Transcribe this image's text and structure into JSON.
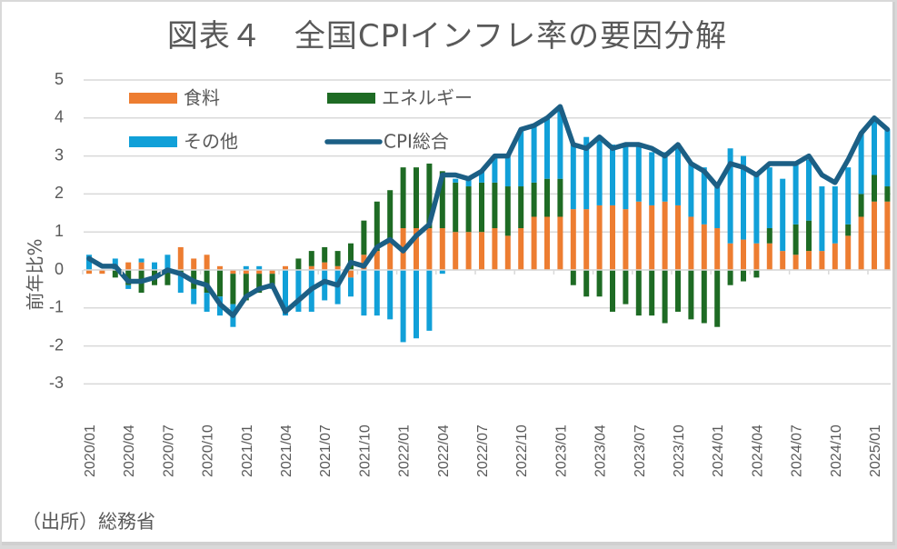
{
  "chart_data": {
    "type": "bar",
    "subtype": "stacked-bar-with-line",
    "title": "図表４　全国CPIインフレ率の要因分解",
    "xlabel": "",
    "ylabel": "前年比%",
    "ylim": [
      -3,
      5
    ],
    "yticks": [
      5,
      4,
      3,
      2,
      1,
      0,
      -1,
      -2,
      -3
    ],
    "grid": true,
    "legend_position": "top-left-inside",
    "source": "（出所）総務省",
    "x_tick_labels": [
      "2020/01",
      "2020/04",
      "2020/07",
      "2020/10",
      "2021/01",
      "2021/04",
      "2021/07",
      "2021/10",
      "2022/01",
      "2022/04",
      "2022/07",
      "2022/10",
      "2023/01",
      "2023/04",
      "2023/07",
      "2023/10",
      "2024/01",
      "2024/04",
      "2024/07",
      "2024/10",
      "2025/01"
    ],
    "categories": [
      "2020/01",
      "2020/02",
      "2020/03",
      "2020/04",
      "2020/05",
      "2020/06",
      "2020/07",
      "2020/08",
      "2020/09",
      "2020/10",
      "2020/11",
      "2020/12",
      "2021/01",
      "2021/02",
      "2021/03",
      "2021/04",
      "2021/05",
      "2021/06",
      "2021/07",
      "2021/08",
      "2021/09",
      "2021/10",
      "2021/11",
      "2021/12",
      "2022/01",
      "2022/02",
      "2022/03",
      "2022/04",
      "2022/05",
      "2022/06",
      "2022/07",
      "2022/08",
      "2022/09",
      "2022/10",
      "2022/11",
      "2022/12",
      "2023/01",
      "2023/02",
      "2023/03",
      "2023/04",
      "2023/05",
      "2023/06",
      "2023/07",
      "2023/08",
      "2023/09",
      "2023/10",
      "2023/11",
      "2023/12",
      "2024/01",
      "2024/02",
      "2024/03",
      "2024/04",
      "2024/05",
      "2024/06",
      "2024/07",
      "2024/08",
      "2024/09",
      "2024/10",
      "2024/11",
      "2024/12",
      "2025/01",
      "2025/02"
    ],
    "series": [
      {
        "name": "食料",
        "kind": "bar",
        "color": "#ED7D31",
        "values": [
          -0.1,
          -0.1,
          0.0,
          0.2,
          0.2,
          0.0,
          0.0,
          0.6,
          0.3,
          0.4,
          0.1,
          -0.1,
          -0.1,
          -0.1,
          -0.1,
          0.1,
          0.0,
          0.1,
          0.2,
          0.1,
          -0.2,
          0.4,
          0.5,
          0.8,
          1.1,
          1.1,
          1.1,
          1.1,
          1.0,
          1.0,
          1.0,
          1.1,
          0.9,
          1.1,
          1.4,
          1.4,
          1.4,
          1.6,
          1.6,
          1.7,
          1.7,
          1.6,
          1.8,
          1.7,
          1.8,
          1.7,
          1.4,
          1.2,
          1.1,
          0.7,
          0.8,
          0.7,
          0.7,
          0.5,
          0.4,
          0.5,
          0.5,
          0.7,
          0.9,
          1.4,
          1.8,
          1.8
        ]
      },
      {
        "name": "エネルギー",
        "kind": "bar",
        "color": "#1E6B24",
        "values": [
          0.0,
          0.0,
          -0.2,
          -0.4,
          -0.6,
          -0.4,
          -0.4,
          -0.1,
          -0.5,
          -0.6,
          -0.7,
          -0.8,
          -0.7,
          -0.5,
          -0.3,
          0.0,
          0.3,
          0.4,
          0.4,
          0.4,
          0.7,
          0.9,
          1.3,
          1.3,
          1.6,
          1.6,
          1.7,
          1.5,
          1.3,
          1.2,
          1.3,
          1.2,
          1.3,
          1.1,
          0.9,
          1.0,
          1.0,
          -0.4,
          -0.7,
          -0.7,
          -1.1,
          -0.9,
          -1.2,
          -1.2,
          -1.4,
          -1.1,
          -1.3,
          -1.4,
          -1.5,
          -0.4,
          -0.3,
          -0.2,
          0.4,
          0.0,
          0.8,
          0.8,
          0.0,
          0.0,
          0.3,
          0.6,
          0.7,
          0.4
        ]
      },
      {
        "name": "その他",
        "kind": "bar",
        "color": "#11A0D8",
        "values": [
          0.4,
          0.0,
          0.3,
          -0.1,
          0.1,
          0.2,
          0.4,
          -0.5,
          -0.4,
          -0.5,
          -0.5,
          -0.6,
          0.1,
          0.1,
          -0.1,
          -1.2,
          -1.1,
          -1.1,
          -0.8,
          -0.9,
          -0.5,
          -1.2,
          -1.2,
          -1.3,
          -1.9,
          -1.8,
          -1.6,
          -0.1,
          0.1,
          0.2,
          0.3,
          0.7,
          0.8,
          1.5,
          1.5,
          1.6,
          1.8,
          1.7,
          1.9,
          1.8,
          1.6,
          1.7,
          1.5,
          1.4,
          1.3,
          1.6,
          1.4,
          1.5,
          1.1,
          2.5,
          2.2,
          1.8,
          1.6,
          1.9,
          1.6,
          1.6,
          1.7,
          1.5,
          1.5,
          1.6,
          1.5,
          1.5
        ]
      },
      {
        "name": "CPI総合",
        "kind": "line",
        "color": "#1C5F85",
        "values": [
          0.3,
          0.1,
          0.1,
          -0.3,
          -0.3,
          -0.2,
          0.0,
          -0.1,
          -0.3,
          -0.4,
          -0.9,
          -1.2,
          -0.7,
          -0.5,
          -0.4,
          -1.1,
          -0.8,
          -0.5,
          -0.3,
          -0.4,
          0.2,
          0.1,
          0.6,
          0.8,
          0.5,
          0.9,
          1.2,
          2.5,
          2.5,
          2.4,
          2.6,
          3.0,
          3.0,
          3.7,
          3.8,
          4.0,
          4.3,
          3.3,
          3.2,
          3.5,
          3.2,
          3.3,
          3.3,
          3.2,
          3.0,
          3.3,
          2.8,
          2.6,
          2.2,
          2.8,
          2.7,
          2.5,
          2.8,
          2.8,
          2.8,
          3.0,
          2.5,
          2.3,
          2.9,
          3.6,
          4.0,
          3.7
        ]
      }
    ]
  }
}
